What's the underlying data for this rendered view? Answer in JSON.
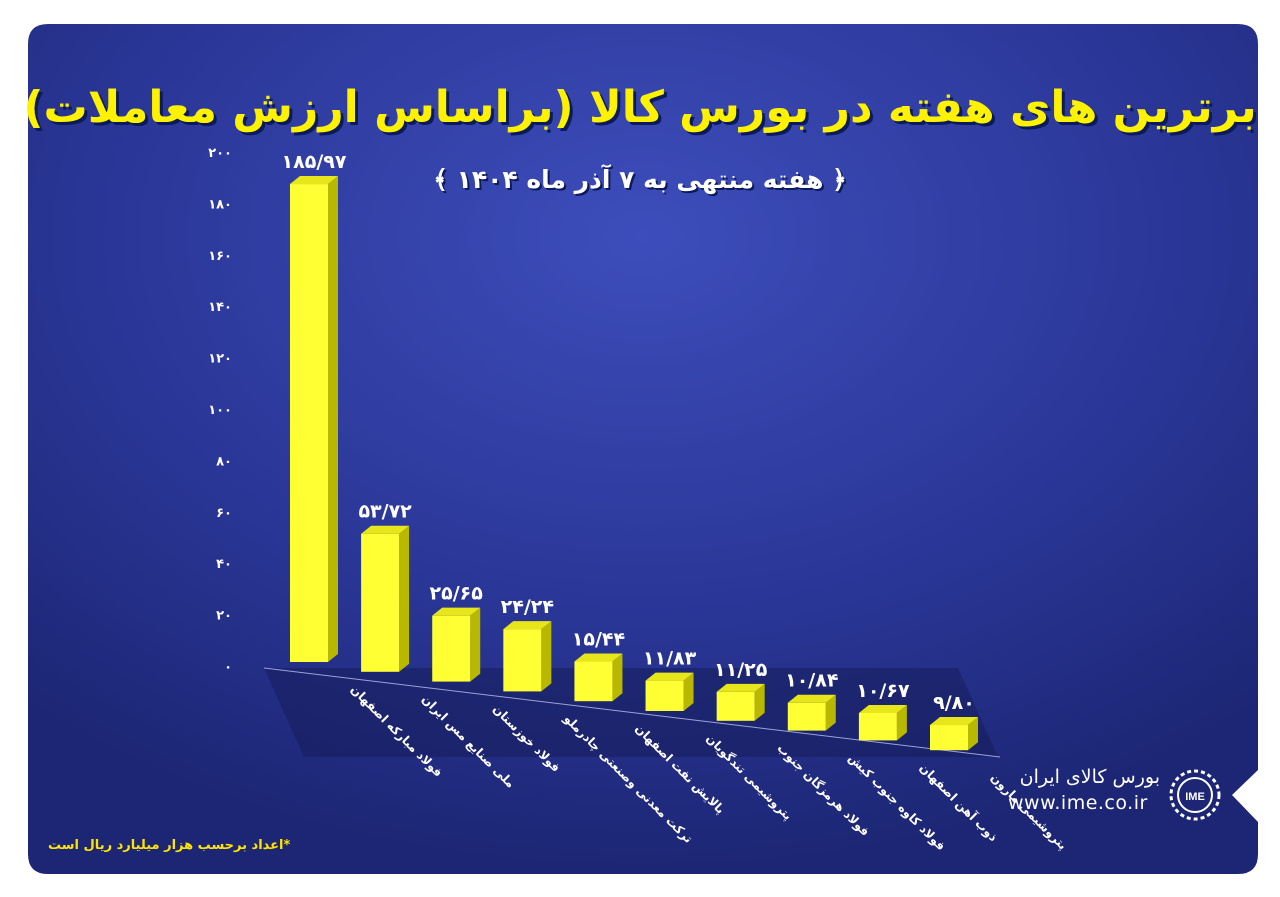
{
  "chart_data": {
    "type": "bar",
    "title": "برترین های هفته در بورس کالا (براساس ارزش معاملات)",
    "subtitle": "﴿ هفته منتهی به ۷ آذر ماه ۱۴۰۴ ﴾",
    "categories": [
      "فولاد مبارکه اصفهان",
      "ملی صنایع مس ایران",
      "فولاد خوزستان",
      "ترکت معدنی وصنعتی چادرملو",
      "پالایش نفت اصفهان",
      "پتروشیمی تندگویان",
      "فولاد هرمزگان جنوب",
      "فولاد کاوه جنوب کیش",
      "ذوب آهن اصفهان",
      "پتروشیمی مارون"
    ],
    "values": [
      185.97,
      53.72,
      25.65,
      24.24,
      15.44,
      11.83,
      11.25,
      10.84,
      10.67,
      9.8
    ],
    "value_labels": [
      "۱۸۵/۹۷",
      "۵۳/۷۲",
      "۲۵/۶۵",
      "۲۴/۲۴",
      "۱۵/۴۴",
      "۱۱/۸۳",
      "۱۱/۲۵",
      "۱۰/۸۴",
      "۱۰/۶۷",
      "۹/۸۰"
    ],
    "ylim": [
      0,
      200
    ],
    "yticks": [
      0,
      20,
      40,
      60,
      80,
      100,
      120,
      140,
      160,
      180,
      200
    ],
    "ytick_labels": [
      "۰",
      "۲۰",
      "۴۰",
      "۶۰",
      "۸۰",
      "۱۰۰",
      "۱۲۰",
      "۱۴۰",
      "۱۶۰",
      "۱۸۰",
      "۲۰۰"
    ],
    "xlabel": "",
    "ylabel": "",
    "grid": false,
    "bar_color": "#ffff33",
    "footnote": "*اعداد برحسب هزار میلیارد ریال است"
  },
  "brand": {
    "name": "بورس کالای ایران",
    "url": "www.ime.co.ir",
    "logo_text": "IME"
  },
  "colors": {
    "background": "#2b3696",
    "title": "#fff200",
    "bar": "#ffff33"
  }
}
